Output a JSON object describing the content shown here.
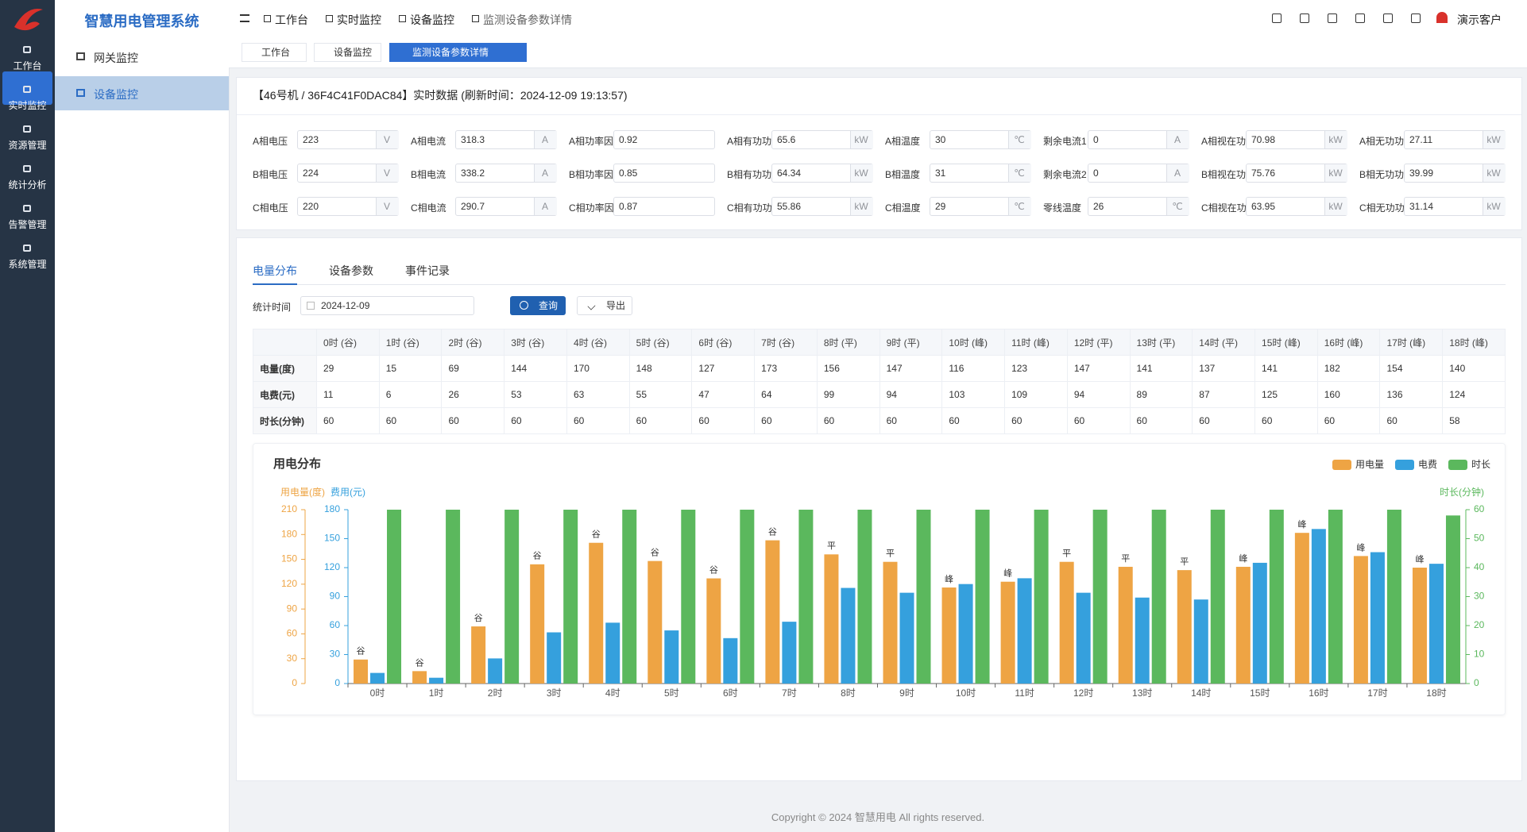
{
  "app_title": "智慧用电管理系统",
  "sidebar": [
    "工作台",
    "实时监控",
    "资源管理",
    "统计分析",
    "告警管理",
    "系统管理"
  ],
  "submenu": [
    "网关监控",
    "设备监控"
  ],
  "breadcrumb": [
    "工作台",
    "实时监控",
    "设备监控",
    "监测设备参数详情"
  ],
  "user": "演示客户",
  "tabs": [
    "工作台",
    "设备监控",
    "监测设备参数详情"
  ],
  "realtime": {
    "title": "【46号机 / 36F4C41F0DAC84】实时数据 (刷新时间：2024-12-09 19:13:57)",
    "rows": [
      [
        {
          "label": "A相电压",
          "value": 223,
          "unit": "V"
        },
        {
          "label": "A相电流",
          "value": 318.3,
          "unit": "A"
        },
        {
          "label": "A相功率因数",
          "value": 0.92
        },
        {
          "label": "A相有功功率",
          "value": 65.6,
          "unit": "kW"
        },
        {
          "label": "A相温度",
          "value": 30,
          "unit": "℃"
        },
        {
          "label": "剩余电流1",
          "value": 0,
          "unit": "A"
        },
        {
          "label": "A相视在功率",
          "value": 70.98,
          "unit": "kW"
        },
        {
          "label": "A相无功功率",
          "value": 27.11,
          "unit": "kW"
        }
      ],
      [
        {
          "label": "B相电压",
          "value": 224,
          "unit": "V"
        },
        {
          "label": "B相电流",
          "value": 338.2,
          "unit": "A"
        },
        {
          "label": "B相功率因数",
          "value": 0.85
        },
        {
          "label": "B相有功功率",
          "value": 64.34,
          "unit": "kW"
        },
        {
          "label": "B相温度",
          "value": 31,
          "unit": "℃"
        },
        {
          "label": "剩余电流2",
          "value": 0,
          "unit": "A"
        },
        {
          "label": "B相视在功率",
          "value": 75.76,
          "unit": "kW"
        },
        {
          "label": "B相无功功率",
          "value": 39.99,
          "unit": "kW"
        }
      ],
      [
        {
          "label": "C相电压",
          "value": 220,
          "unit": "V"
        },
        {
          "label": "C相电流",
          "value": 290.7,
          "unit": "A"
        },
        {
          "label": "C相功率因数",
          "value": 0.87
        },
        {
          "label": "C相有功功率",
          "value": 55.86,
          "unit": "kW"
        },
        {
          "label": "C相温度",
          "value": 29,
          "unit": "℃"
        },
        {
          "label": "零线温度",
          "value": 26,
          "unit": "℃"
        },
        {
          "label": "C相视在功率",
          "value": 63.95,
          "unit": "kW"
        },
        {
          "label": "C相无功功率",
          "value": 31.14,
          "unit": "kW"
        }
      ]
    ]
  },
  "detail_tabs": [
    "电量分布",
    "设备参数",
    "事件记录"
  ],
  "filter": {
    "label": "统计时间",
    "date": "2024-12-09",
    "query": "查询",
    "export": "导出"
  },
  "table": {
    "columns": [
      "0时 (谷)",
      "1时 (谷)",
      "2时 (谷)",
      "3时 (谷)",
      "4时 (谷)",
      "5时 (谷)",
      "6时 (谷)",
      "7时 (谷)",
      "8时 (平)",
      "9时 (平)",
      "10时 (峰)",
      "11时 (峰)",
      "12时 (平)",
      "13时 (平)",
      "14时 (平)",
      "15时 (峰)",
      "16时 (峰)",
      "17时 (峰)",
      "18时 (峰)"
    ],
    "rows": [
      {
        "label": "电量(度)",
        "values": [
          29,
          15,
          69,
          144,
          170,
          148,
          127,
          173,
          156,
          147,
          116,
          123,
          147,
          141,
          137,
          141,
          182,
          154,
          140
        ]
      },
      {
        "label": "电费(元)",
        "values": [
          11,
          6,
          26,
          53,
          63,
          55,
          47,
          64,
          99,
          94,
          103,
          109,
          94,
          89,
          87,
          125,
          160,
          136,
          124
        ]
      },
      {
        "label": "时长(分钟)",
        "values": [
          60,
          60,
          60,
          60,
          60,
          60,
          60,
          60,
          60,
          60,
          60,
          60,
          60,
          60,
          60,
          60,
          60,
          60,
          58
        ]
      }
    ]
  },
  "chart_data": {
    "type": "bar",
    "title": "用电分布",
    "ylabel": "用电量(度)",
    "y2label": "费用(元)",
    "y3label": "时长(分钟)",
    "categories": [
      "0时",
      "1时",
      "2时",
      "3时",
      "4时",
      "5时",
      "6时",
      "7时",
      "8时",
      "9时",
      "10时",
      "11时",
      "12时",
      "13时",
      "14时",
      "15时",
      "16时",
      "17时",
      "18时"
    ],
    "annotations": [
      "谷",
      "谷",
      "谷",
      "谷",
      "谷",
      "谷",
      "谷",
      "谷",
      "平",
      "平",
      "峰",
      "峰",
      "平",
      "平",
      "平",
      "峰",
      "峰",
      "峰",
      "峰"
    ],
    "series": [
      {
        "name": "用电量",
        "color": "#eea444",
        "axis": "y",
        "values": [
          29,
          15,
          69,
          144,
          170,
          148,
          127,
          173,
          156,
          147,
          116,
          123,
          147,
          141,
          137,
          141,
          182,
          154,
          140
        ]
      },
      {
        "name": "电费",
        "color": "#35a0dd",
        "axis": "y2",
        "values": [
          11,
          6,
          26,
          53,
          63,
          55,
          47,
          64,
          99,
          94,
          103,
          109,
          94,
          89,
          87,
          125,
          160,
          136,
          124
        ]
      },
      {
        "name": "时长",
        "color": "#5bb85d",
        "axis": "y3",
        "values": [
          60,
          60,
          60,
          60,
          60,
          60,
          60,
          60,
          60,
          60,
          60,
          60,
          60,
          60,
          60,
          60,
          60,
          60,
          58
        ]
      }
    ],
    "ylim": [
      0,
      210
    ],
    "yticks": [
      0,
      30,
      60,
      90,
      120,
      150,
      180,
      210
    ],
    "y2lim": [
      0,
      180
    ],
    "y2ticks": [
      0,
      30,
      60,
      90,
      120,
      150,
      180
    ],
    "y3lim": [
      0,
      60
    ],
    "y3ticks": [
      0,
      10,
      20,
      30,
      40,
      50,
      60
    ],
    "legend": "top-right"
  },
  "footer": "Copyright © 2024 智慧用电 All rights reserved."
}
